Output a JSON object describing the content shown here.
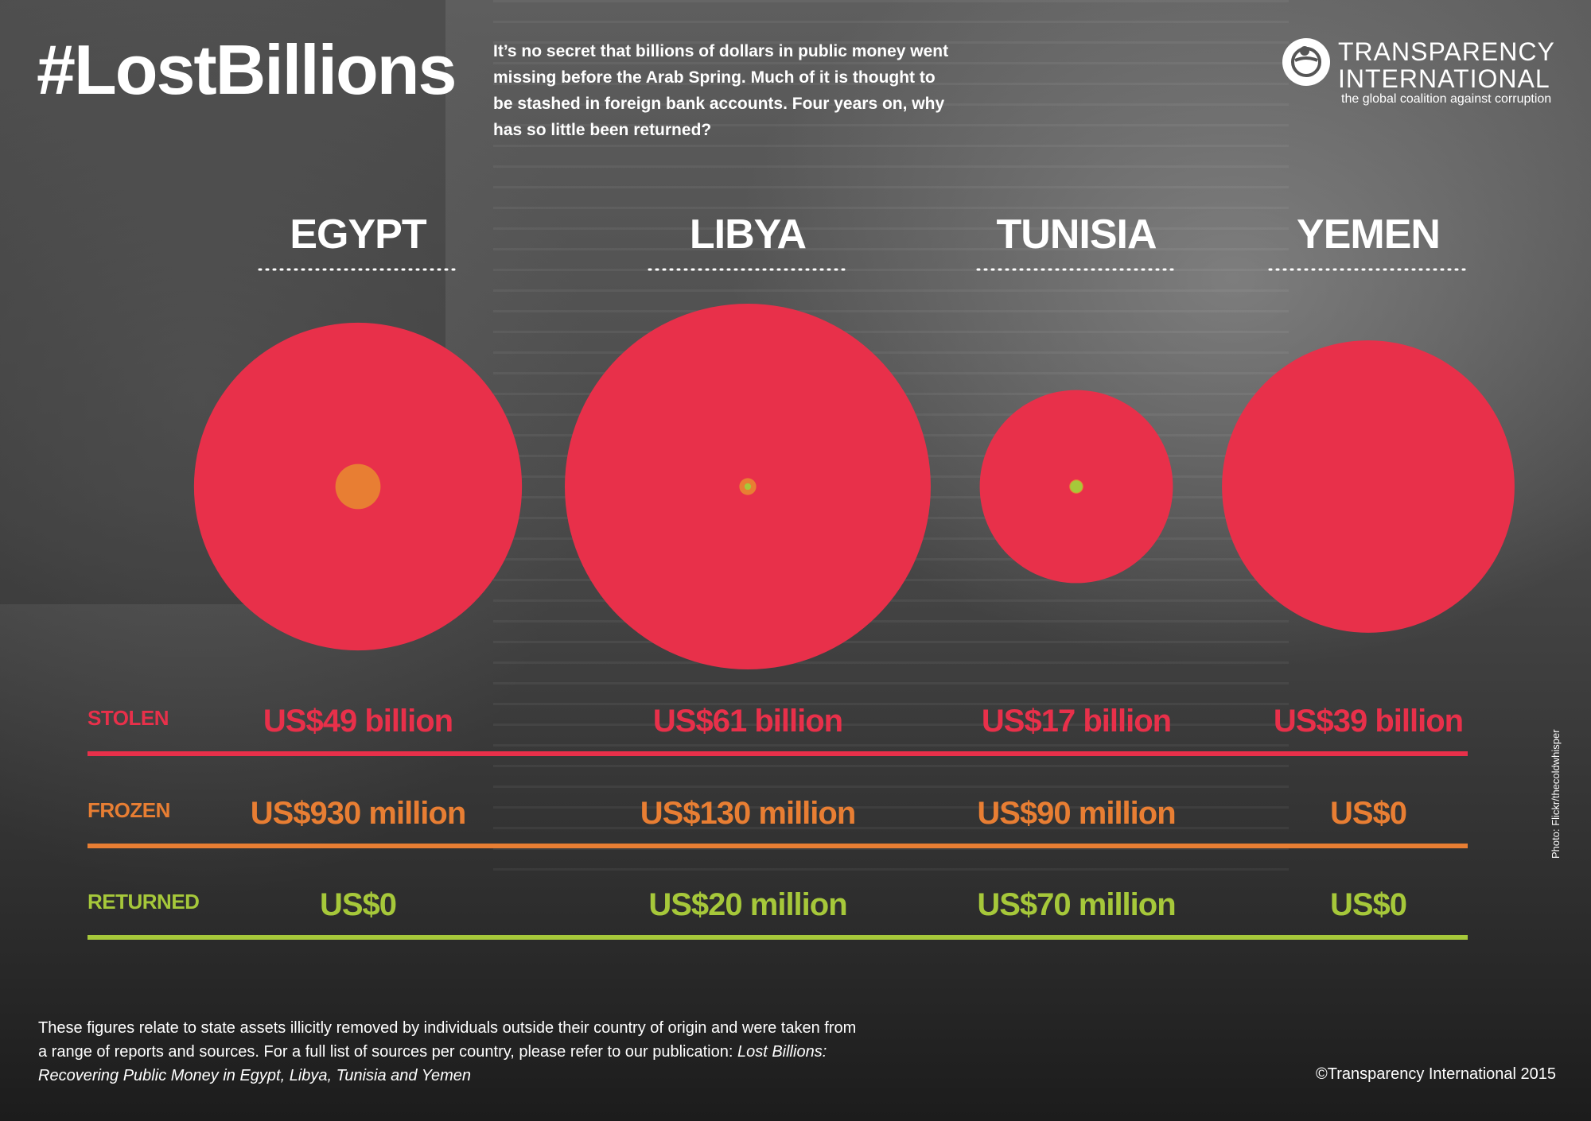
{
  "header": {
    "hashtag": "#LostBillions",
    "intro": "It’s no secret that billions of dollars in public money went missing before the Arab Spring. Much of it is thought to be stashed in foreign bank accounts. Four years on, why has so little been returned?"
  },
  "logo": {
    "name": "TRANSPARENCY\nINTERNATIONAL",
    "tagline": "the global coalition against corruption"
  },
  "colors": {
    "stolen": "#e8304a",
    "frozen": "#e87e33",
    "returned": "#a6c83a"
  },
  "chart_data": {
    "type": "bubble",
    "categories": [
      "EGYPT",
      "LIBYA",
      "TUNISIA",
      "YEMEN"
    ],
    "units": "US$ billion",
    "series": [
      {
        "name": "STOLEN",
        "values": [
          49,
          61,
          17,
          39
        ],
        "labels": [
          "US$49 billion",
          "US$61 billion",
          "US$17 billion",
          "US$39 billion"
        ]
      },
      {
        "name": "FROZEN",
        "values": [
          0.93,
          0.13,
          0.09,
          0
        ],
        "labels": [
          "US$930 million",
          "US$130 million",
          "US$90 million",
          "US$0"
        ]
      },
      {
        "name": "RETURNED",
        "values": [
          0,
          0.02,
          0.07,
          0
        ],
        "labels": [
          "US$0",
          "US$20 million",
          "US$70 million",
          "US$0"
        ]
      }
    ]
  },
  "photo_credit": "Photo: Flickr/thecoldwhisper",
  "footnote": {
    "text": "These figures relate to state assets illicitly removed by individuals outside their country of origin and were taken from a range of reports and sources. For a full list of sources per country, please refer to our publication: ",
    "publication": "Lost Billions: Recovering Public Money in Egypt, Libya, Tunisia and Yemen"
  },
  "copyright": "©Transparency International 2015"
}
